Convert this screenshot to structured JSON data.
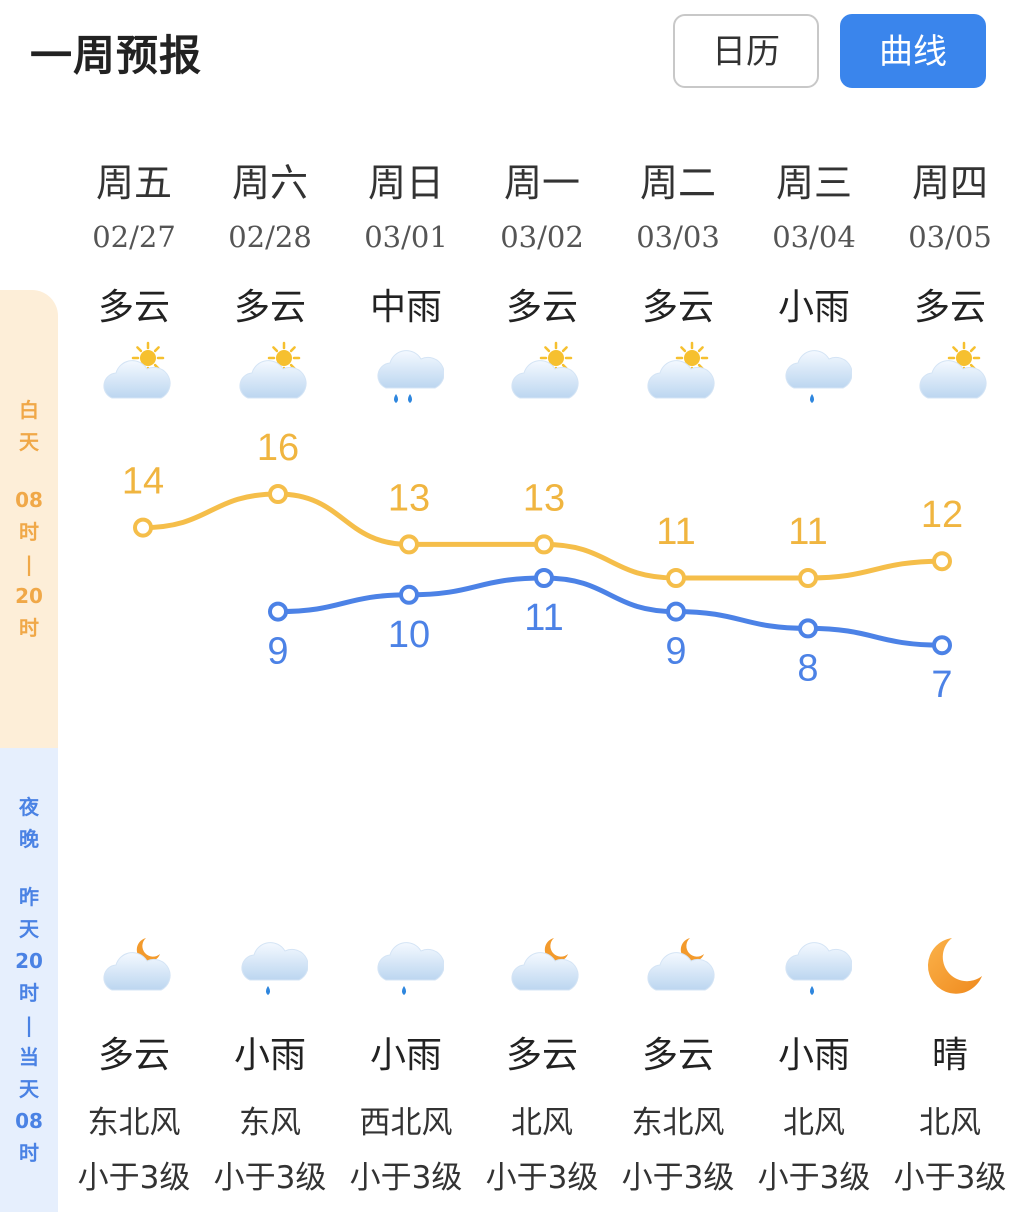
{
  "header": {
    "title": "一周预报",
    "calendar_label": "日历",
    "curve_label": "曲线"
  },
  "side_labels": {
    "day": [
      "白",
      "天",
      "",
      "08",
      "时",
      "|",
      "20",
      "时"
    ],
    "night": [
      "夜",
      "晚",
      "",
      "昨",
      "天",
      "20",
      "时",
      "|",
      "当",
      "天",
      "08",
      "时"
    ]
  },
  "colors": {
    "accent": "#3a85ec",
    "high_line": "#f5be4a",
    "high_text": "#f0b540",
    "low_line": "#4c82e6",
    "low_text": "#4c82e6"
  },
  "days": [
    {
      "weekday": "周五",
      "date": "02/27",
      "day_weather": "多云",
      "day_icon": "partly-cloudy-day-icon",
      "night_weather": "多云",
      "night_icon": "partly-cloudy-night-icon",
      "wind_dir": "东北风",
      "wind_level": "小于3级"
    },
    {
      "weekday": "周六",
      "date": "02/28",
      "day_weather": "多云",
      "day_icon": "partly-cloudy-day-icon",
      "night_weather": "小雨",
      "night_icon": "light-rain-icon",
      "wind_dir": "东风",
      "wind_level": "小于3级"
    },
    {
      "weekday": "周日",
      "date": "03/01",
      "day_weather": "中雨",
      "day_icon": "moderate-rain-icon",
      "night_weather": "小雨",
      "night_icon": "light-rain-icon",
      "wind_dir": "西北风",
      "wind_level": "小于3级"
    },
    {
      "weekday": "周一",
      "date": "03/02",
      "day_weather": "多云",
      "day_icon": "partly-cloudy-day-icon",
      "night_weather": "多云",
      "night_icon": "partly-cloudy-night-icon",
      "wind_dir": "北风",
      "wind_level": "小于3级"
    },
    {
      "weekday": "周二",
      "date": "03/03",
      "day_weather": "多云",
      "day_icon": "partly-cloudy-day-icon",
      "night_weather": "多云",
      "night_icon": "partly-cloudy-night-icon",
      "wind_dir": "东北风",
      "wind_level": "小于3级"
    },
    {
      "weekday": "周三",
      "date": "03/04",
      "day_weather": "小雨",
      "day_icon": "light-rain-icon",
      "night_weather": "小雨",
      "night_icon": "light-rain-icon",
      "wind_dir": "北风",
      "wind_level": "小于3级"
    },
    {
      "weekday": "周四",
      "date": "03/05",
      "day_weather": "多云",
      "day_icon": "partly-cloudy-day-icon",
      "night_weather": "晴",
      "night_icon": "moon-icon",
      "wind_dir": "北风",
      "wind_level": "小于3级"
    }
  ],
  "chart_data": {
    "type": "line",
    "x": [
      "02/27",
      "02/28",
      "03/01",
      "03/02",
      "03/03",
      "03/04",
      "03/05"
    ],
    "series": [
      {
        "values": [
          14,
          16,
          13,
          13,
          11,
          11,
          12
        ]
      },
      {
        "values": [
          null,
          9,
          10,
          11,
          9,
          8,
          7
        ]
      }
    ],
    "grid": false
  }
}
